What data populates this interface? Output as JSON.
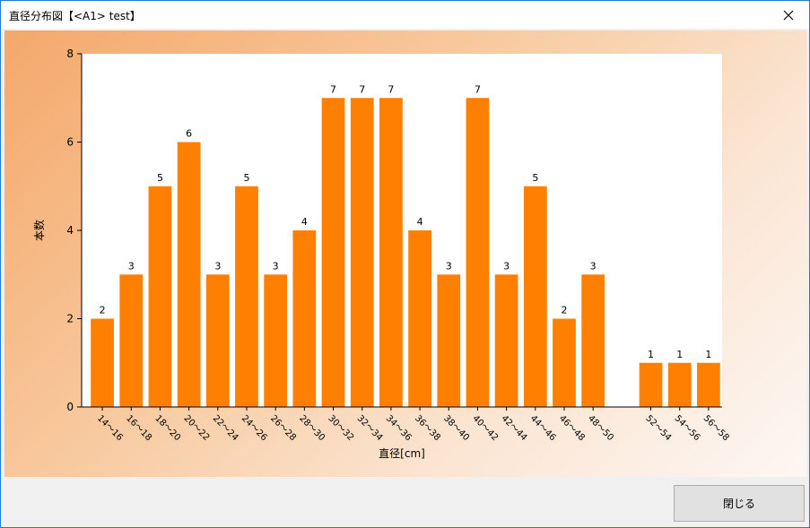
{
  "window": {
    "title": "直径分布図【<A1> test】",
    "close_button_label": "閉じる",
    "close_icon": "close-icon"
  },
  "colors": {
    "bar": "#ff8000",
    "gradient_start": "#f4a86a",
    "gradient_end": "#fdf7f3"
  },
  "chart_data": {
    "type": "bar",
    "title": "",
    "xlabel": "直径[cm]",
    "ylabel": "本数",
    "ylim": [
      0,
      8
    ],
    "yticks": [
      0,
      2,
      4,
      6,
      8
    ],
    "grid": false,
    "categories": [
      "14～16",
      "16～18",
      "18～20",
      "20～22",
      "22～24",
      "24～26",
      "26～28",
      "28～30",
      "30～32",
      "32～34",
      "34～36",
      "36～38",
      "38～40",
      "40～42",
      "42～44",
      "44～46",
      "46～48",
      "48～50",
      "",
      "52～54",
      "54～56",
      "56～58"
    ],
    "values": [
      2,
      3,
      5,
      6,
      3,
      5,
      3,
      4,
      7,
      7,
      7,
      4,
      3,
      7,
      3,
      5,
      2,
      3,
      null,
      1,
      1,
      1
    ],
    "data_labels": true
  }
}
